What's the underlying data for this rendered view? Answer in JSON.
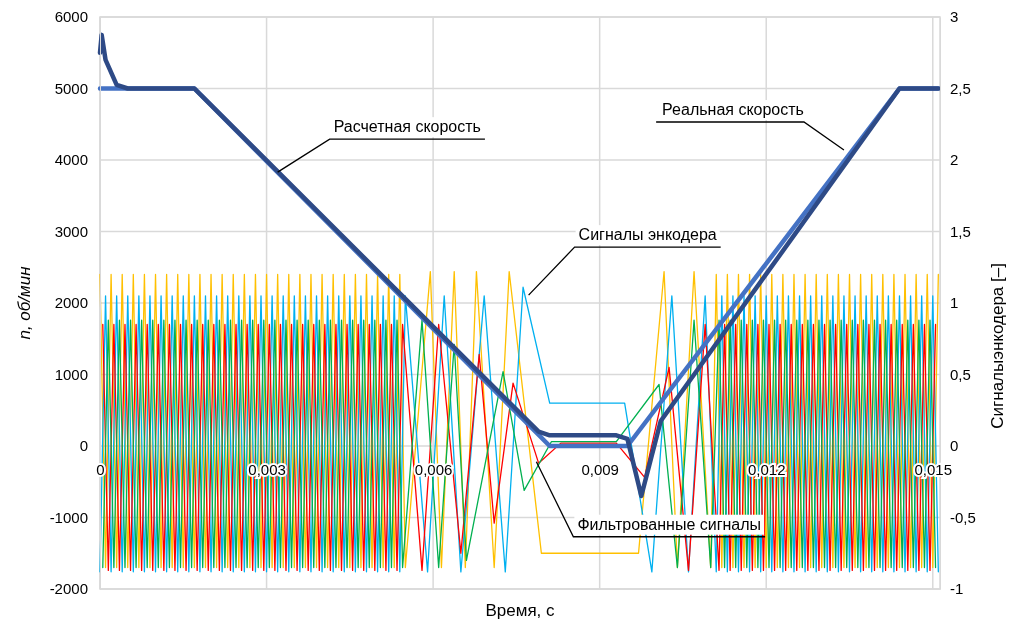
{
  "chart_data": {
    "type": "line",
    "xlabel": "Время, с",
    "ylabel": "n, об/мин",
    "y2label": "Сигналыэнкодера [–]",
    "xlim": [
      0,
      0.01513
    ],
    "xticks": [
      0,
      {
        "value": 0.003,
        "label": "0,003"
      },
      {
        "value": 0.006,
        "label": "0,006"
      },
      {
        "value": 0.009,
        "label": "0,009"
      },
      {
        "value": 0.012,
        "label": "0,012"
      },
      {
        "value": 0.015,
        "label": "0,015"
      }
    ],
    "ylim": [
      -2000,
      6000
    ],
    "yticks": [
      -2000,
      -1000,
      0,
      1000,
      2000,
      3000,
      4000,
      5000,
      6000
    ],
    "y2lim": [
      -1,
      3
    ],
    "y2ticks": [
      -1,
      {
        "value": -0.5,
        "label": "-0,5"
      },
      0,
      {
        "value": 0.5,
        "label": "0,5"
      },
      1,
      {
        "value": 1.5,
        "label": "1,5"
      },
      2,
      {
        "value": 2.5,
        "label": "2,5"
      },
      3
    ],
    "grid": true,
    "line_style": "solid",
    "marker": "none",
    "series": [
      {
        "color": "#ffc000",
        "axis": "y2",
        "x": [
          0,
          0.0001,
          0.0002,
          0.0003,
          0.0004,
          0.0005,
          0.0006,
          0.0007,
          0.0008,
          0.0009,
          0.001,
          0.0011,
          0.0012,
          0.0013,
          0.0014,
          0.0015,
          0.0016,
          0.0017,
          0.0018,
          0.0019,
          0.002,
          0.0021,
          0.0022,
          0.0023,
          0.0024,
          0.0025,
          0.0026,
          0.0027,
          0.0028,
          0.0029,
          0.003,
          0.0031,
          0.0032,
          0.0033,
          0.0034,
          0.0035,
          0.0036,
          0.0037,
          0.0038,
          0.0039,
          0.004,
          0.0041,
          0.0042,
          0.0043,
          0.0044,
          0.0045,
          0.0046,
          0.0047,
          0.0048,
          0.0049,
          0.005,
          0.0051,
          0.0052,
          0.0053,
          0.0054,
          0.0055,
          0.00595,
          0.00615,
          0.00638,
          0.00658,
          0.00678,
          0.0071,
          0.00737,
          0.00795,
          0.0097,
          0.01016,
          0.0104,
          0.0107,
          0.011,
          0.0111,
          0.0112,
          0.0113,
          0.0114,
          0.0115,
          0.0116,
          0.0117,
          0.0118,
          0.0119,
          0.012,
          0.0121,
          0.0122,
          0.0123,
          0.0124,
          0.0125,
          0.0126,
          0.0127,
          0.0128,
          0.0129,
          0.013,
          0.0131,
          0.0132,
          0.0133,
          0.0134,
          0.0135,
          0.0136,
          0.0137,
          0.0138,
          0.0139,
          0.014,
          0.0141,
          0.0142,
          0.0143,
          0.0144,
          0.0145,
          0.0146,
          0.0147,
          0.0148,
          0.0149,
          0.015,
          0.0151
        ],
        "values": [
          1.2,
          -0.85,
          1.2,
          -0.85,
          1.2,
          -0.85,
          1.2,
          -0.85,
          1.2,
          -0.85,
          1.2,
          -0.85,
          1.2,
          -0.85,
          1.2,
          -0.85,
          1.2,
          -0.85,
          1.2,
          -0.85,
          1.2,
          -0.85,
          1.2,
          -0.85,
          1.2,
          -0.85,
          1.2,
          -0.85,
          1.2,
          -0.85,
          1.2,
          -0.85,
          1.2,
          -0.85,
          1.2,
          -0.85,
          1.2,
          -0.85,
          1.2,
          -0.85,
          1.2,
          -0.85,
          1.2,
          -0.85,
          1.2,
          -0.85,
          1.2,
          -0.85,
          1.2,
          -0.85,
          1.2,
          -0.85,
          1.2,
          -0.85,
          1.2,
          -0.85,
          1.22,
          -0.85,
          1.22,
          -0.85,
          1.22,
          -0.85,
          1.22,
          -0.75,
          -0.75,
          1.22,
          -0.85,
          1.22,
          -0.85,
          1.2,
          -0.85,
          1.2,
          -0.85,
          1.2,
          -0.85,
          1.2,
          -0.85,
          1.2,
          -0.85,
          1.2,
          -0.85,
          1.2,
          -0.85,
          1.2,
          -0.85,
          1.2,
          -0.85,
          1.2,
          -0.85,
          1.2,
          -0.85,
          1.2,
          -0.85,
          1.2,
          -0.85,
          1.2,
          -0.85,
          1.2,
          -0.85,
          1.2,
          -0.85,
          1.2,
          -0.85,
          1.2,
          -0.85,
          1.2,
          -0.85,
          1.2,
          -0.85,
          1.2
        ]
      },
      {
        "color": "#00b0f0",
        "axis": "y2",
        "x": [
          0,
          0.0001,
          0.0002,
          0.0003,
          0.0004,
          0.0005,
          0.0006,
          0.0007,
          0.0008,
          0.0009,
          0.001,
          0.0011,
          0.0012,
          0.0013,
          0.0014,
          0.0015,
          0.0016,
          0.0017,
          0.0018,
          0.0019,
          0.002,
          0.0021,
          0.0022,
          0.0023,
          0.0024,
          0.0025,
          0.0026,
          0.0027,
          0.0028,
          0.0029,
          0.003,
          0.0031,
          0.0032,
          0.0033,
          0.0034,
          0.0035,
          0.0036,
          0.0037,
          0.0038,
          0.0039,
          0.004,
          0.0041,
          0.0042,
          0.0043,
          0.0044,
          0.0045,
          0.0046,
          0.0047,
          0.0048,
          0.0049,
          0.005,
          0.0051,
          0.0052,
          0.0053,
          0.0054,
          0.0055,
          0.0059,
          0.0062,
          0.0065,
          0.00692,
          0.0073,
          0.00762,
          0.0081,
          0.00945,
          0.00994,
          0.0103,
          0.0106,
          0.0109,
          0.0111,
          0.0112,
          0.0113,
          0.0114,
          0.0115,
          0.0116,
          0.0117,
          0.0118,
          0.0119,
          0.012,
          0.0121,
          0.0122,
          0.0123,
          0.0124,
          0.0125,
          0.0126,
          0.0127,
          0.0128,
          0.0129,
          0.013,
          0.0131,
          0.0132,
          0.0133,
          0.0134,
          0.0135,
          0.0136,
          0.0137,
          0.0138,
          0.0139,
          0.014,
          0.0141,
          0.0142,
          0.0143,
          0.0144,
          0.0145,
          0.0146,
          0.0147,
          0.0148,
          0.0149,
          0.015,
          0.0151
        ],
        "values": [
          -0.88,
          1.05,
          -0.88,
          1.05,
          -0.88,
          1.05,
          -0.88,
          1.05,
          -0.88,
          1.05,
          -0.88,
          1.05,
          -0.88,
          1.05,
          -0.88,
          1.05,
          -0.88,
          1.05,
          -0.88,
          1.05,
          -0.88,
          1.05,
          -0.88,
          1.05,
          -0.88,
          1.05,
          -0.88,
          1.05,
          -0.88,
          1.05,
          -0.88,
          1.05,
          -0.88,
          1.05,
          -0.88,
          1.05,
          -0.88,
          1.05,
          -0.88,
          1.05,
          -0.88,
          1.05,
          -0.88,
          1.05,
          -0.88,
          1.05,
          -0.88,
          1.05,
          -0.88,
          1.05,
          -0.88,
          1.05,
          -0.88,
          1.05,
          -0.88,
          1.05,
          -0.88,
          1.05,
          -0.88,
          1.05,
          -0.88,
          1.11,
          0.3,
          0.3,
          -0.88,
          1.05,
          -0.88,
          1.05,
          -0.88,
          1.05,
          -0.88,
          1.05,
          -0.88,
          1.05,
          -0.88,
          1.05,
          -0.88,
          1.05,
          -0.88,
          1.05,
          -0.88,
          1.05,
          -0.88,
          1.05,
          -0.88,
          1.05,
          -0.88,
          1.05,
          -0.88,
          1.05,
          -0.88,
          1.05,
          -0.88,
          1.05,
          -0.88,
          1.05,
          -0.88,
          1.05,
          -0.88,
          1.05,
          -0.88,
          1.05,
          -0.88,
          1.05,
          -0.88,
          1.05,
          -0.88,
          1.05,
          -0.88
        ]
      },
      {
        "color": "#ff0000",
        "axis": "y2",
        "x": [
          5e-05,
          0.00015,
          0.00025,
          0.00035,
          0.00045,
          0.00055,
          0.00065,
          0.00075,
          0.00085,
          0.00095,
          0.00105,
          0.00115,
          0.00125,
          0.00135,
          0.00145,
          0.00155,
          0.00165,
          0.00175,
          0.00185,
          0.00195,
          0.00205,
          0.00215,
          0.00225,
          0.00235,
          0.00245,
          0.00255,
          0.00265,
          0.00275,
          0.00285,
          0.00295,
          0.00305,
          0.00315,
          0.00325,
          0.00335,
          0.00345,
          0.00355,
          0.00365,
          0.00375,
          0.00385,
          0.00395,
          0.00405,
          0.00415,
          0.00425,
          0.00435,
          0.00445,
          0.00455,
          0.00465,
          0.00475,
          0.00485,
          0.00495,
          0.00505,
          0.00515,
          0.00525,
          0.00535,
          0.00545,
          0.0058,
          0.0061,
          0.0065,
          0.00683,
          0.0071,
          0.00744,
          0.0079,
          0.0083,
          0.0093,
          0.00981,
          0.01025,
          0.0106,
          0.0109,
          0.01115,
          0.01125,
          0.01135,
          0.01145,
          0.01155,
          0.01165,
          0.01175,
          0.01185,
          0.01195,
          0.01205,
          0.01215,
          0.01225,
          0.01235,
          0.01245,
          0.01255,
          0.01265,
          0.01275,
          0.01285,
          0.01295,
          0.01305,
          0.01315,
          0.01325,
          0.01335,
          0.01345,
          0.01355,
          0.01365,
          0.01375,
          0.01385,
          0.01395,
          0.01405,
          0.01415,
          0.01425,
          0.01435,
          0.01445,
          0.01455,
          0.01465,
          0.01475,
          0.01485,
          0.01495,
          0.01505
        ],
        "values": [
          0.85,
          -0.87,
          0.85,
          -0.87,
          0.85,
          -0.87,
          0.85,
          -0.87,
          0.85,
          -0.87,
          0.85,
          -0.87,
          0.85,
          -0.87,
          0.85,
          -0.87,
          0.85,
          -0.87,
          0.85,
          -0.87,
          0.85,
          -0.87,
          0.85,
          -0.87,
          0.85,
          -0.87,
          0.85,
          -0.87,
          0.85,
          -0.87,
          0.85,
          -0.87,
          0.85,
          -0.87,
          0.85,
          -0.87,
          0.85,
          -0.87,
          0.85,
          -0.87,
          0.85,
          -0.87,
          0.85,
          -0.87,
          0.85,
          -0.87,
          0.85,
          -0.87,
          0.85,
          -0.87,
          0.85,
          -0.87,
          0.85,
          -0.87,
          0.85,
          -0.87,
          0.85,
          -0.75,
          0.64,
          -0.54,
          0.44,
          -0.12,
          0.02,
          0.02,
          -0.22,
          0.55,
          -0.87,
          0.85,
          -0.87,
          0.85,
          -0.87,
          0.85,
          -0.87,
          0.85,
          -0.87,
          0.85,
          -0.87,
          0.85,
          -0.87,
          0.85,
          -0.87,
          0.85,
          -0.87,
          0.85,
          -0.87,
          0.85,
          -0.87,
          0.85,
          -0.87,
          0.85,
          -0.87,
          0.85,
          -0.87,
          0.85,
          -0.87,
          0.85,
          -0.87,
          0.85,
          -0.87,
          0.85,
          -0.87,
          0.85,
          -0.87,
          0.85,
          -0.87,
          0.85,
          -0.87,
          0.85
        ]
      },
      {
        "color": "#00b050",
        "axis": "y2",
        "x": [
          5e-05,
          0.00015,
          0.00025,
          0.00035,
          0.00045,
          0.00055,
          0.00065,
          0.00075,
          0.00085,
          0.00095,
          0.00105,
          0.00115,
          0.00125,
          0.00135,
          0.00145,
          0.00155,
          0.00165,
          0.00175,
          0.00185,
          0.00195,
          0.00205,
          0.00215,
          0.00225,
          0.00235,
          0.00245,
          0.00255,
          0.00265,
          0.00275,
          0.00285,
          0.00295,
          0.00305,
          0.00315,
          0.00325,
          0.00335,
          0.00345,
          0.00355,
          0.00365,
          0.00375,
          0.00385,
          0.00395,
          0.00405,
          0.00415,
          0.00425,
          0.00435,
          0.00445,
          0.00455,
          0.00465,
          0.00475,
          0.00485,
          0.00495,
          0.00505,
          0.00515,
          0.00525,
          0.00535,
          0.00545,
          0.0058,
          0.0061,
          0.00638,
          0.0066,
          0.00726,
          0.00764,
          0.00813,
          0.0093,
          0.01007,
          0.0104,
          0.0107,
          0.011,
          0.01115,
          0.01125,
          0.01135,
          0.01145,
          0.01155,
          0.01165,
          0.01175,
          0.01185,
          0.01195,
          0.01205,
          0.01215,
          0.01225,
          0.01235,
          0.01245,
          0.01255,
          0.01265,
          0.01275,
          0.01285,
          0.01295,
          0.01305,
          0.01315,
          0.01325,
          0.01335,
          0.01345,
          0.01355,
          0.01365,
          0.01375,
          0.01385,
          0.01395,
          0.01405,
          0.01415,
          0.01425,
          0.01435,
          0.01445,
          0.01455,
          0.01465,
          0.01475,
          0.01485,
          0.01495,
          0.01505
        ],
        "values": [
          -0.85,
          0.88,
          -0.85,
          0.88,
          -0.85,
          0.88,
          -0.85,
          0.88,
          -0.85,
          0.88,
          -0.85,
          0.88,
          -0.85,
          0.88,
          -0.85,
          0.88,
          -0.85,
          0.88,
          -0.85,
          0.88,
          -0.85,
          0.88,
          -0.85,
          0.88,
          -0.85,
          0.88,
          -0.85,
          0.88,
          -0.85,
          0.88,
          -0.85,
          0.88,
          -0.85,
          0.88,
          -0.85,
          0.88,
          -0.85,
          0.88,
          -0.85,
          0.88,
          -0.85,
          0.88,
          -0.85,
          0.88,
          -0.85,
          0.88,
          -0.85,
          0.88,
          -0.85,
          0.88,
          -0.85,
          0.88,
          -0.85,
          0.88,
          -0.85,
          0.88,
          -0.85,
          0.71,
          -0.8,
          0.52,
          -0.31,
          0.03,
          0.03,
          0.43,
          -0.85,
          0.88,
          -0.85,
          0.88,
          -0.85,
          0.88,
          -0.85,
          0.88,
          -0.85,
          0.88,
          -0.85,
          0.88,
          -0.85,
          0.88,
          -0.85,
          0.88,
          -0.85,
          0.88,
          -0.85,
          0.88,
          -0.85,
          0.88,
          -0.85,
          0.88,
          -0.85,
          0.88,
          -0.85,
          0.88,
          -0.85,
          0.88,
          -0.85,
          0.88,
          -0.85,
          0.88,
          -0.85,
          0.88,
          -0.85,
          0.88,
          -0.85,
          0.88,
          -0.85,
          0.88,
          -0.85
        ]
      },
      {
        "color": "#4472c4",
        "x": [
          0,
          0.0017,
          0.0081,
          0.0095,
          0.0144,
          0.0151
        ],
        "values": [
          5000,
          5000,
          0,
          0,
          5000,
          5000
        ]
      },
      {
        "color": "#2e4a86",
        "x": [
          0,
          3e-05,
          0.0001,
          0.0003,
          0.0005,
          0.0017,
          0.0079,
          0.0081,
          0.0093,
          0.0095,
          0.00975,
          0.0101,
          0.0144,
          0.0151
        ],
        "values": [
          5500,
          5750,
          5400,
          5050,
          5000,
          5000,
          200,
          150,
          150,
          100,
          -700,
          350,
          5000,
          5000
        ]
      }
    ],
    "annotations": [
      {
        "text": "Расчетная скорость",
        "x": 0.0032,
        "y": 3830
      },
      {
        "text": "Реальная скорость",
        "x": 0.0134,
        "y": 4140
      },
      {
        "text": "Сигналы энкодера",
        "x": 0.00772,
        "y": 2110
      },
      {
        "text": "Фильтрованные сигналы",
        "x": 0.00786,
        "y": -220
      }
    ]
  }
}
